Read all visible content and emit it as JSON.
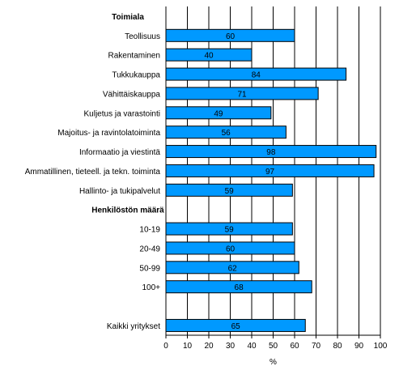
{
  "chart_data": {
    "type": "bar",
    "orientation": "horizontal",
    "xlabel": "%",
    "xlim": [
      0,
      100
    ],
    "xticks": [
      0,
      10,
      20,
      30,
      40,
      50,
      60,
      70,
      80,
      90,
      100
    ],
    "grid": "vertical",
    "bar_color": "#0099ff",
    "rows": [
      {
        "kind": "group",
        "label": "Toimiala"
      },
      {
        "kind": "bar",
        "label": "Teollisuus",
        "value": 60
      },
      {
        "kind": "bar",
        "label": "Rakentaminen",
        "value": 40
      },
      {
        "kind": "bar",
        "label": "Tukkukauppa",
        "value": 84
      },
      {
        "kind": "bar",
        "label": "Vähittäiskauppa",
        "value": 71
      },
      {
        "kind": "bar",
        "label": "Kuljetus ja varastointi",
        "value": 49
      },
      {
        "kind": "bar",
        "label": "Majoitus- ja ravintolatoiminta",
        "value": 56
      },
      {
        "kind": "bar",
        "label": "Informaatio ja viestintä",
        "value": 98
      },
      {
        "kind": "bar",
        "label": "Ammatillinen, tieteell. ja tekn. toiminta",
        "value": 97
      },
      {
        "kind": "bar",
        "label": "Hallinto- ja tukipalvelut",
        "value": 59
      },
      {
        "kind": "group",
        "label": "Henkilöstön määrä"
      },
      {
        "kind": "bar",
        "label": "10-19",
        "value": 59
      },
      {
        "kind": "bar",
        "label": "20-49",
        "value": 60
      },
      {
        "kind": "bar",
        "label": "50-99",
        "value": 62
      },
      {
        "kind": "bar",
        "label": "100+",
        "value": 68
      },
      {
        "kind": "spacer"
      },
      {
        "kind": "bar",
        "label": "Kaikki yritykset",
        "value": 65
      }
    ]
  }
}
